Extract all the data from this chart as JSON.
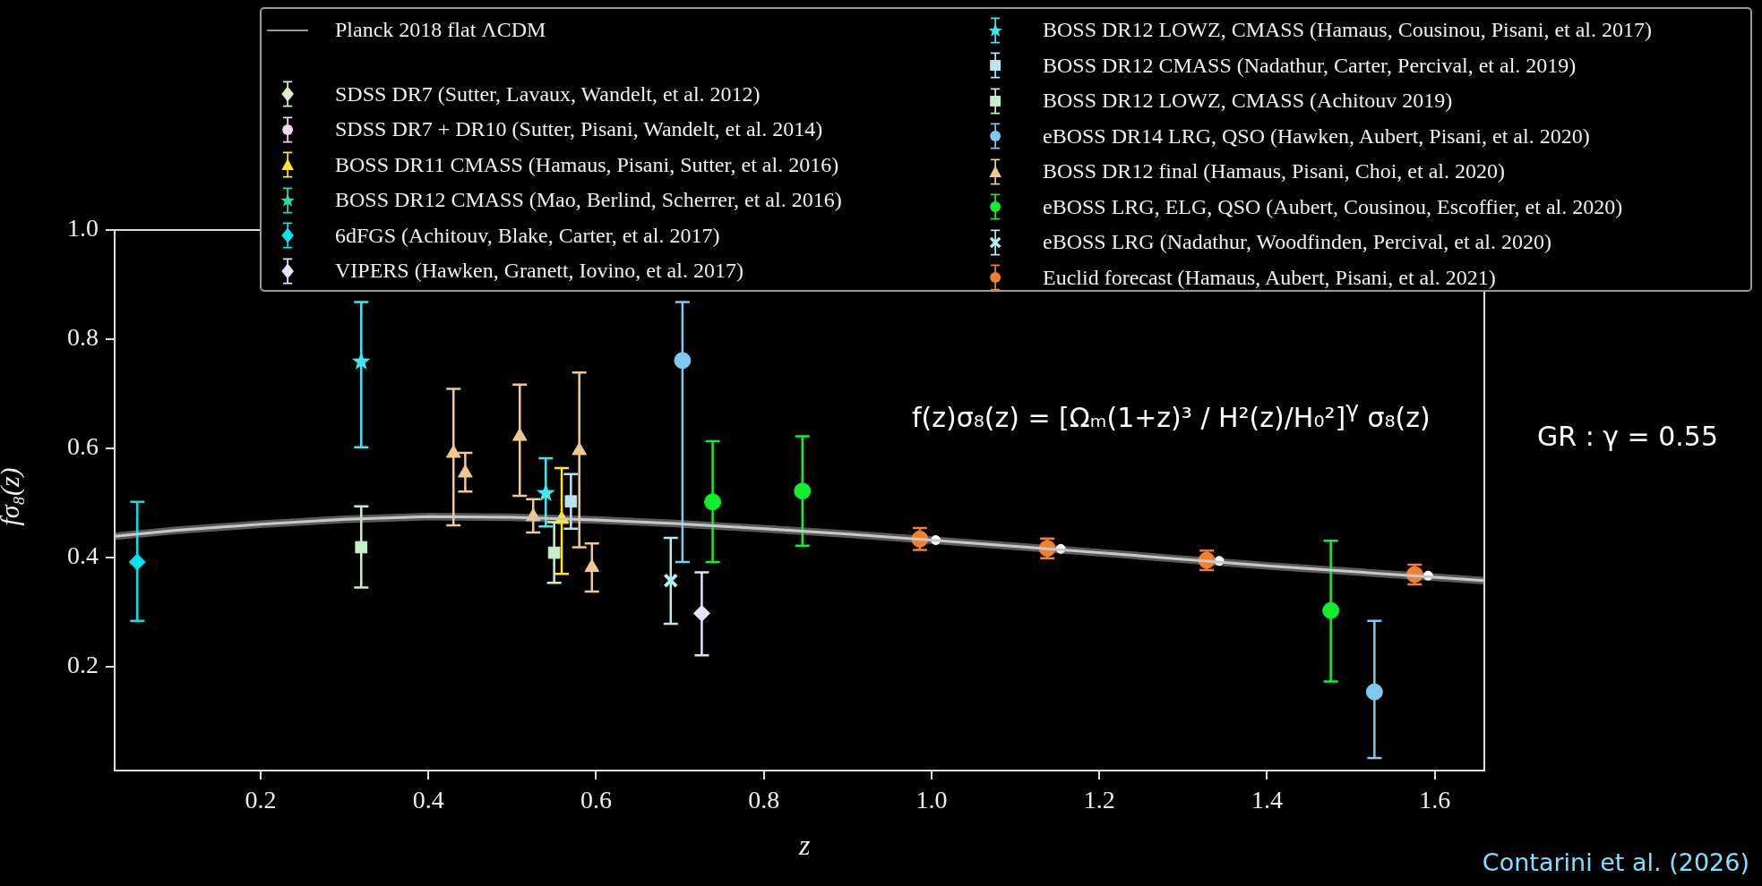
{
  "chart_data": {
    "type": "scatter",
    "xlabel": "z",
    "ylabel": "fσ₈(z)",
    "xlim": [
      0.026,
      1.659
    ],
    "ylim": [
      0.01,
      1.0
    ],
    "xticks": [
      0.2,
      0.4,
      0.6,
      0.8,
      {
        "value": 1,
        "label": "1.0"
      },
      1.2,
      1.4,
      1.6
    ],
    "yticks": [
      0.2,
      0.4,
      0.6,
      0.8,
      {
        "value": 1,
        "label": "1.0"
      }
    ],
    "legend": "top",
    "annotations": [
      "f(z)σ₈(z) = [Ωₘ(1+z)³ / H²(z)/H₀²]$^{γ}$ σ₈(z)",
      "GR : γ = 0.55",
      "Contarini et al. (2026)"
    ],
    "series": [
      {
        "name": "Planck 2018 flat ΛCDM",
        "type": "line",
        "color": "#c8c8c8",
        "marker": "none",
        "x": [
          0.026,
          0.1,
          0.2,
          0.3,
          0.4,
          0.5,
          0.6,
          0.7,
          0.8,
          0.9,
          1.0,
          1.2,
          1.4,
          1.6,
          1.659
        ],
        "values": [
          0.439,
          0.45,
          0.461,
          0.47,
          0.475,
          0.474,
          0.469,
          0.462,
          0.453,
          0.443,
          0.432,
          0.409,
          0.385,
          0.364,
          0.358
        ],
        "lower": [
          0.432,
          0.443,
          0.454,
          0.463,
          0.468,
          0.467,
          0.462,
          0.455,
          0.446,
          0.436,
          0.425,
          0.402,
          0.378,
          0.357,
          0.351
        ],
        "upper": [
          0.446,
          0.457,
          0.468,
          0.477,
          0.482,
          0.481,
          0.476,
          0.469,
          0.46,
          0.45,
          0.439,
          0.416,
          0.392,
          0.371,
          0.365
        ]
      },
      {
        "name": "SDSS DR7 (Sutter, Lavaux, Wandelt, et al. 2012)",
        "color": "#d8f0d0",
        "marker": "diamond"
      },
      {
        "name": "SDSS DR7 + DR10 (Sutter, Pisani, Wandelt, et al. 2014)",
        "color": "#f0d8f0",
        "marker": "circle"
      },
      {
        "name": "BOSS DR11 CMASS (Hamaus, Pisani, Sutter, et al. 2016)",
        "color": "#ffe81a",
        "marker": "triangle",
        "x": [
          0.559
        ],
        "values": [
          0.47
        ],
        "errors": [
          [
            0.37,
            0.564
          ]
        ]
      },
      {
        "name": "BOSS DR12 CMASS (Mao, Berlind, Scherrer, et al. 2016)",
        "color": "#20e0b0",
        "marker": "star"
      },
      {
        "name": "6dFGS (Achitouv, Blake, Carter, et al. 2017)",
        "color": "#00e5ee",
        "marker": "diamond",
        "x": [
          0.053
        ],
        "values": [
          0.392
        ],
        "errors": [
          [
            0.284,
            0.502
          ]
        ]
      },
      {
        "name": "VIPERS (Hawken, Granett, Iovino, et al. 2017)",
        "color": "#e4e4ff",
        "marker": "diamond",
        "x": [
          0.726
        ],
        "values": [
          0.298
        ],
        "errors": [
          [
            0.221,
            0.373
          ]
        ]
      },
      {
        "name": "BOSS DR12 LOWZ, CMASS (Hamaus, Cousinou, Pisani, et al. 2017)",
        "color": "#40e8f0",
        "marker": "star",
        "x": [
          0.32,
          0.54
        ],
        "values": [
          0.759,
          0.518
        ],
        "errors": [
          [
            0.602,
            0.868
          ],
          [
            0.457,
            0.582
          ]
        ]
      },
      {
        "name": "BOSS DR12 CMASS (Nadathur, Carter, Percival, et al. 2019)",
        "color": "#b8e4f4",
        "marker": "square",
        "x": [
          0.57
        ],
        "values": [
          0.503
        ],
        "errors": [
          [
            0.453,
            0.553
          ]
        ]
      },
      {
        "name": "BOSS DR12 LOWZ, CMASS (Achitouv 2019)",
        "color": "#c8f0c8",
        "marker": "square",
        "x": [
          0.32,
          0.55
        ],
        "values": [
          0.419,
          0.409
        ],
        "errors": [
          [
            0.345,
            0.494
          ],
          [
            0.354,
            0.465
          ]
        ]
      },
      {
        "name": "eBOSS DR14 LRG, QSO (Hawken, Aubert, Pisani, et al. 2020)",
        "color": "#80c8f0",
        "marker": "circle",
        "x": [
          0.703,
          1.528
        ],
        "values": [
          0.761,
          0.154
        ],
        "errors": [
          [
            0.392,
            0.868
          ],
          [
            0.033,
            0.284
          ]
        ]
      },
      {
        "name": "BOSS DR12 final (Hamaus, Pisani, Choi, et al. 2020)",
        "color": "#f0c890",
        "marker": "triangle",
        "x": [
          0.43,
          0.444,
          0.509,
          0.525,
          0.58,
          0.595
        ],
        "values": [
          0.591,
          0.555,
          0.622,
          0.475,
          0.596,
          0.382
        ],
        "errors": [
          [
            0.459,
            0.709
          ],
          [
            0.521,
            0.592
          ],
          [
            0.513,
            0.717
          ],
          [
            0.446,
            0.507
          ],
          [
            0.419,
            0.739
          ],
          [
            0.338,
            0.426
          ]
        ]
      },
      {
        "name": "eBOSS LRG, ELG, QSO (Aubert, Cousinou, Escoffier, et al. 2020)",
        "color": "#10ee30",
        "marker": "circle",
        "x": [
          0.739,
          0.846,
          1.476
        ],
        "values": [
          0.502,
          0.522,
          0.303
        ],
        "errors": [
          [
            0.392,
            0.613
          ],
          [
            0.422,
            0.622
          ],
          [
            0.173,
            0.431
          ]
        ]
      },
      {
        "name": "eBOSS LRG (Nadathur, Woodfinden, Percival, et al. 2020)",
        "color": "#b0f0f0",
        "marker": "cross",
        "x": [
          0.689
        ],
        "values": [
          0.358
        ],
        "errors": [
          [
            0.279,
            0.436
          ]
        ]
      },
      {
        "name": "Euclid forecast (Hamaus, Aubert, Pisani, et al. 2021)",
        "color": "#f08030",
        "marker": "circle",
        "x": [
          0.986,
          1.138,
          1.328,
          1.576
        ],
        "values": [
          0.434,
          0.417,
          0.395,
          0.369
        ],
        "errors": [
          0.02,
          0.018,
          0.018,
          0.018
        ]
      },
      {
        "color": "#ffffff",
        "marker": "circle",
        "x": [
          1.005,
          1.154,
          1.343,
          1.592
        ],
        "values": [
          0.432,
          0.416,
          0.394,
          0.367
        ]
      }
    ]
  }
}
